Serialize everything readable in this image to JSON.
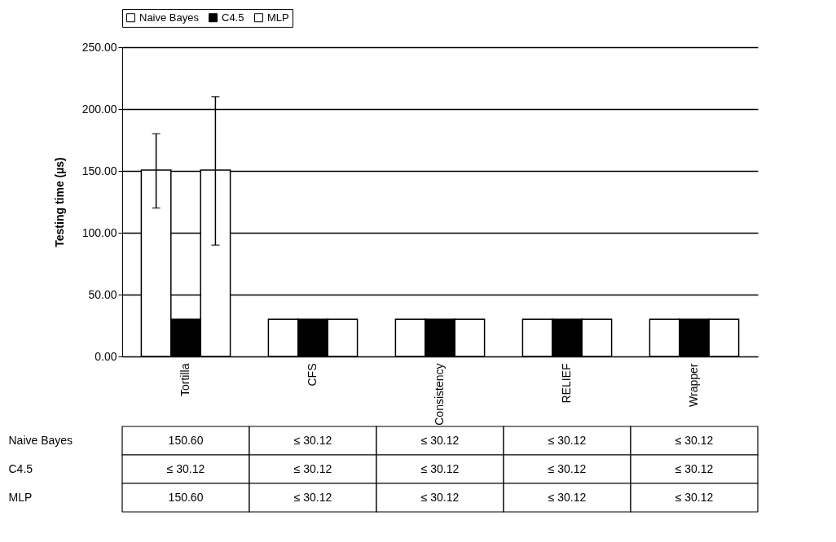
{
  "chart_data": {
    "type": "bar",
    "ylabel": "Testing time (µs)",
    "categories": [
      "Tortilla",
      "CFS",
      "Consistency",
      "RELIEF",
      "Wrapper"
    ],
    "series": [
      {
        "name": "Naive Bayes",
        "color": "#ffffff",
        "values": [
          150.6,
          30.12,
          30.12,
          30.12,
          30.12
        ],
        "errors": [
          [
            120,
            180
          ],
          null,
          null,
          null,
          null
        ],
        "value_labels": [
          "150.60",
          "≤ 30.12",
          "≤ 30.12",
          "≤ 30.12",
          "≤ 30.12"
        ]
      },
      {
        "name": "C4.5",
        "color": "#000000",
        "values": [
          30.12,
          30.12,
          30.12,
          30.12,
          30.12
        ],
        "value_labels": [
          "≤ 30.12",
          "≤ 30.12",
          "≤ 30.12",
          "≤ 30.12",
          "≤ 30.12"
        ]
      },
      {
        "name": "MLP",
        "color": "#ffffff",
        "values": [
          150.6,
          30.12,
          30.12,
          30.12,
          30.12
        ],
        "errors": [
          [
            90,
            210
          ],
          null,
          null,
          null,
          null
        ],
        "value_labels": [
          "150.60",
          "≤ 30.12",
          "≤ 30.12",
          "≤ 30.12",
          "≤ 30.12"
        ]
      }
    ],
    "ylim": [
      0,
      250
    ],
    "yticks": [
      {
        "value": 0,
        "label": "0.00"
      },
      {
        "value": 50,
        "label": "50.00"
      },
      {
        "value": 100,
        "label": "100.00"
      },
      {
        "value": 150,
        "label": "150.00"
      },
      {
        "value": 200,
        "label": "200.00"
      },
      {
        "value": 250,
        "label": "250.00"
      }
    ],
    "grid": "y",
    "legend": "top"
  }
}
